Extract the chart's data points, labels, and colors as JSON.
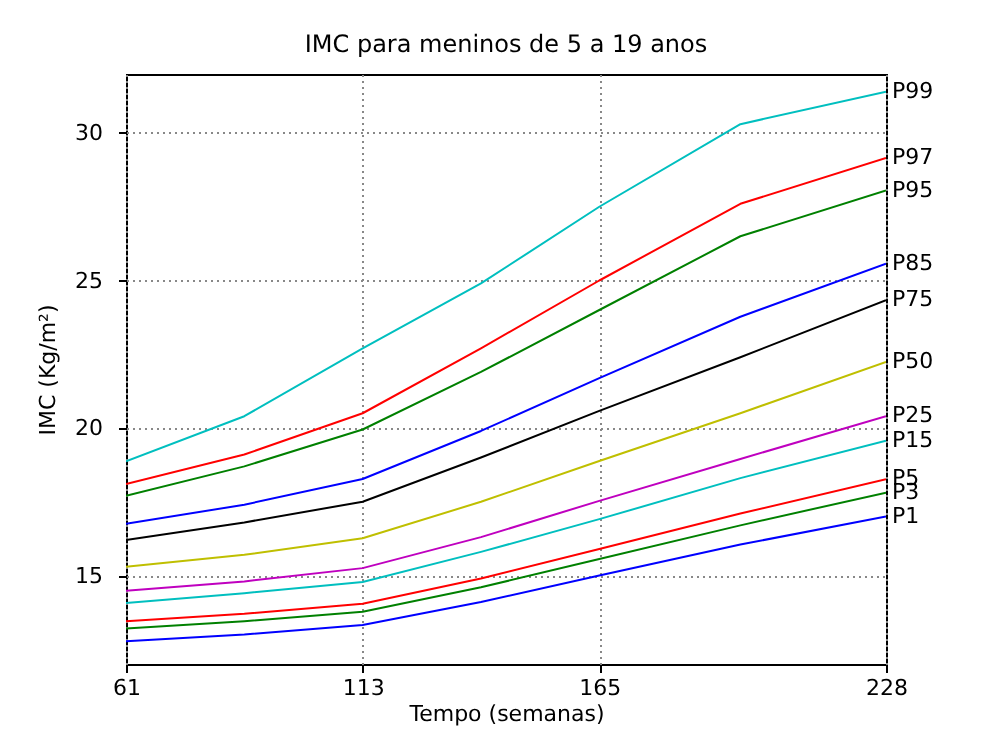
{
  "chart_data": {
    "type": "line",
    "title": "IMC para meninos de 5 a 19 anos",
    "xlabel": "Tempo (semanas)",
    "ylabel": "IMC (Kg/m²)",
    "x": [
      61,
      87,
      113,
      139,
      165,
      196,
      228
    ],
    "xlim": [
      61,
      228
    ],
    "xticks": [
      61,
      113,
      165,
      228
    ],
    "ylim": [
      12,
      32
    ],
    "yticks": [
      15,
      20,
      25,
      30
    ],
    "grid": true,
    "legend": false,
    "marker": "none",
    "line_style": "solid",
    "series": [
      {
        "name": "P99",
        "color": "#00bfbf",
        "values": [
          18.87,
          20.4,
          22.7,
          24.9,
          27.5,
          30.3,
          31.4
        ]
      },
      {
        "name": "P97",
        "color": "#ff0000",
        "values": [
          18.1,
          19.1,
          20.5,
          22.7,
          25.0,
          27.6,
          29.15
        ]
      },
      {
        "name": "P95",
        "color": "#008000",
        "values": [
          17.7,
          18.7,
          19.95,
          21.9,
          24.0,
          26.5,
          28.05
        ]
      },
      {
        "name": "P85",
        "color": "#0000ff",
        "values": [
          16.75,
          17.4,
          18.27,
          19.9,
          21.69,
          23.77,
          25.57
        ]
      },
      {
        "name": "P75",
        "color": "#000000",
        "values": [
          16.2,
          16.8,
          17.5,
          19.0,
          20.58,
          22.4,
          24.33
        ]
      },
      {
        "name": "P50",
        "color": "#bfbf00",
        "values": [
          15.3,
          15.7,
          16.26,
          17.5,
          18.88,
          20.5,
          22.24
        ]
      },
      {
        "name": "P25",
        "color": "#bf00bf",
        "values": [
          14.48,
          14.8,
          15.25,
          16.3,
          17.53,
          18.95,
          20.4
        ]
      },
      {
        "name": "P15",
        "color": "#00bfbf",
        "values": [
          14.07,
          14.4,
          14.78,
          15.8,
          16.91,
          18.3,
          19.57
        ]
      },
      {
        "name": "P5",
        "color": "#ff0000",
        "values": [
          13.45,
          13.7,
          14.04,
          14.9,
          15.9,
          17.1,
          18.26
        ]
      },
      {
        "name": "P3",
        "color": "#008000",
        "values": [
          13.2,
          13.45,
          13.77,
          14.6,
          15.56,
          16.7,
          17.81
        ]
      },
      {
        "name": "P1",
        "color": "#0000ff",
        "values": [
          12.77,
          13.0,
          13.32,
          14.1,
          15.0,
          16.05,
          17.0
        ]
      }
    ]
  }
}
